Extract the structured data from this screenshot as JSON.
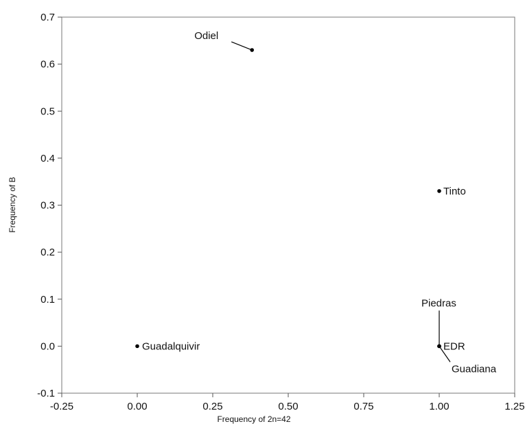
{
  "chart_data": {
    "type": "scatter",
    "xlabel": "Frequency of 2n=42",
    "ylabel": "Frequency of B",
    "xlim": [
      -0.25,
      1.25
    ],
    "ylim": [
      -0.1,
      0.7
    ],
    "x_ticks": [
      "-0.25",
      "0.00",
      "0.25",
      "0.50",
      "0.75",
      "1.00",
      "1.25"
    ],
    "y_ticks": [
      "-0.1",
      "0.0",
      "0.1",
      "0.2",
      "0.3",
      "0.4",
      "0.5",
      "0.6",
      "0.7"
    ],
    "grid": false,
    "points": [
      {
        "label": "Odiel",
        "x": 0.38,
        "y": 0.63
      },
      {
        "label": "Tinto",
        "x": 1.0,
        "y": 0.33
      },
      {
        "label": "Guadalquivir",
        "x": 0.0,
        "y": 0.0
      },
      {
        "label": "Piedras",
        "x": 1.0,
        "y": 0.0
      },
      {
        "label": "EDR",
        "x": 1.0,
        "y": 0.0
      },
      {
        "label": "Guadiana",
        "x": 1.0,
        "y": 0.0
      }
    ]
  }
}
